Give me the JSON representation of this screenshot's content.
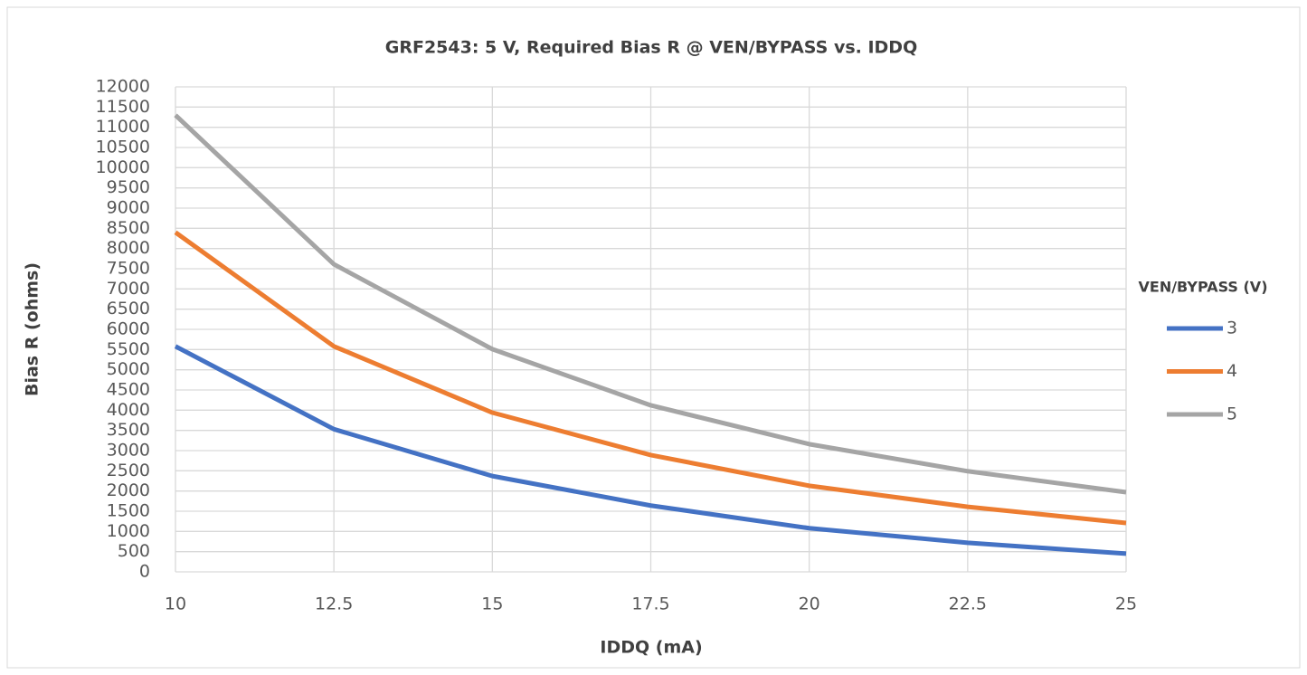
{
  "chart_data": {
    "type": "line",
    "title": "GRF2543: 5 V, Required Bias R @ VEN/BYPASS vs. IDDQ",
    "x_label": "IDDQ (mA)",
    "y_label": "Bias R (ohms)",
    "legend_title": "VEN/BYPASS (V)",
    "x": [
      10,
      12.5,
      15,
      17.5,
      20,
      22.5,
      25
    ],
    "series": [
      {
        "name": "3",
        "color": "#4472c4",
        "values": [
          5580,
          3530,
          2370,
          1640,
          1080,
          720,
          450
        ]
      },
      {
        "name": "4",
        "color": "#ed7d31",
        "values": [
          8400,
          5580,
          3940,
          2890,
          2130,
          1610,
          1210
        ]
      },
      {
        "name": "5",
        "color": "#a5a5a5",
        "values": [
          11300,
          7610,
          5510,
          4120,
          3160,
          2490,
          1970
        ]
      }
    ],
    "xlim": [
      10,
      25
    ],
    "xticks": [
      10,
      12.5,
      15,
      17.5,
      20,
      22.5,
      25
    ],
    "ylim": [
      0,
      12000
    ],
    "yticks": [
      0,
      500,
      1000,
      1500,
      2000,
      2500,
      3000,
      3500,
      4000,
      4500,
      5000,
      5500,
      6000,
      6500,
      7000,
      7500,
      8000,
      8500,
      9000,
      9500,
      10000,
      10500,
      11000,
      11500,
      12000
    ],
    "grid": true,
    "legend": "right"
  }
}
